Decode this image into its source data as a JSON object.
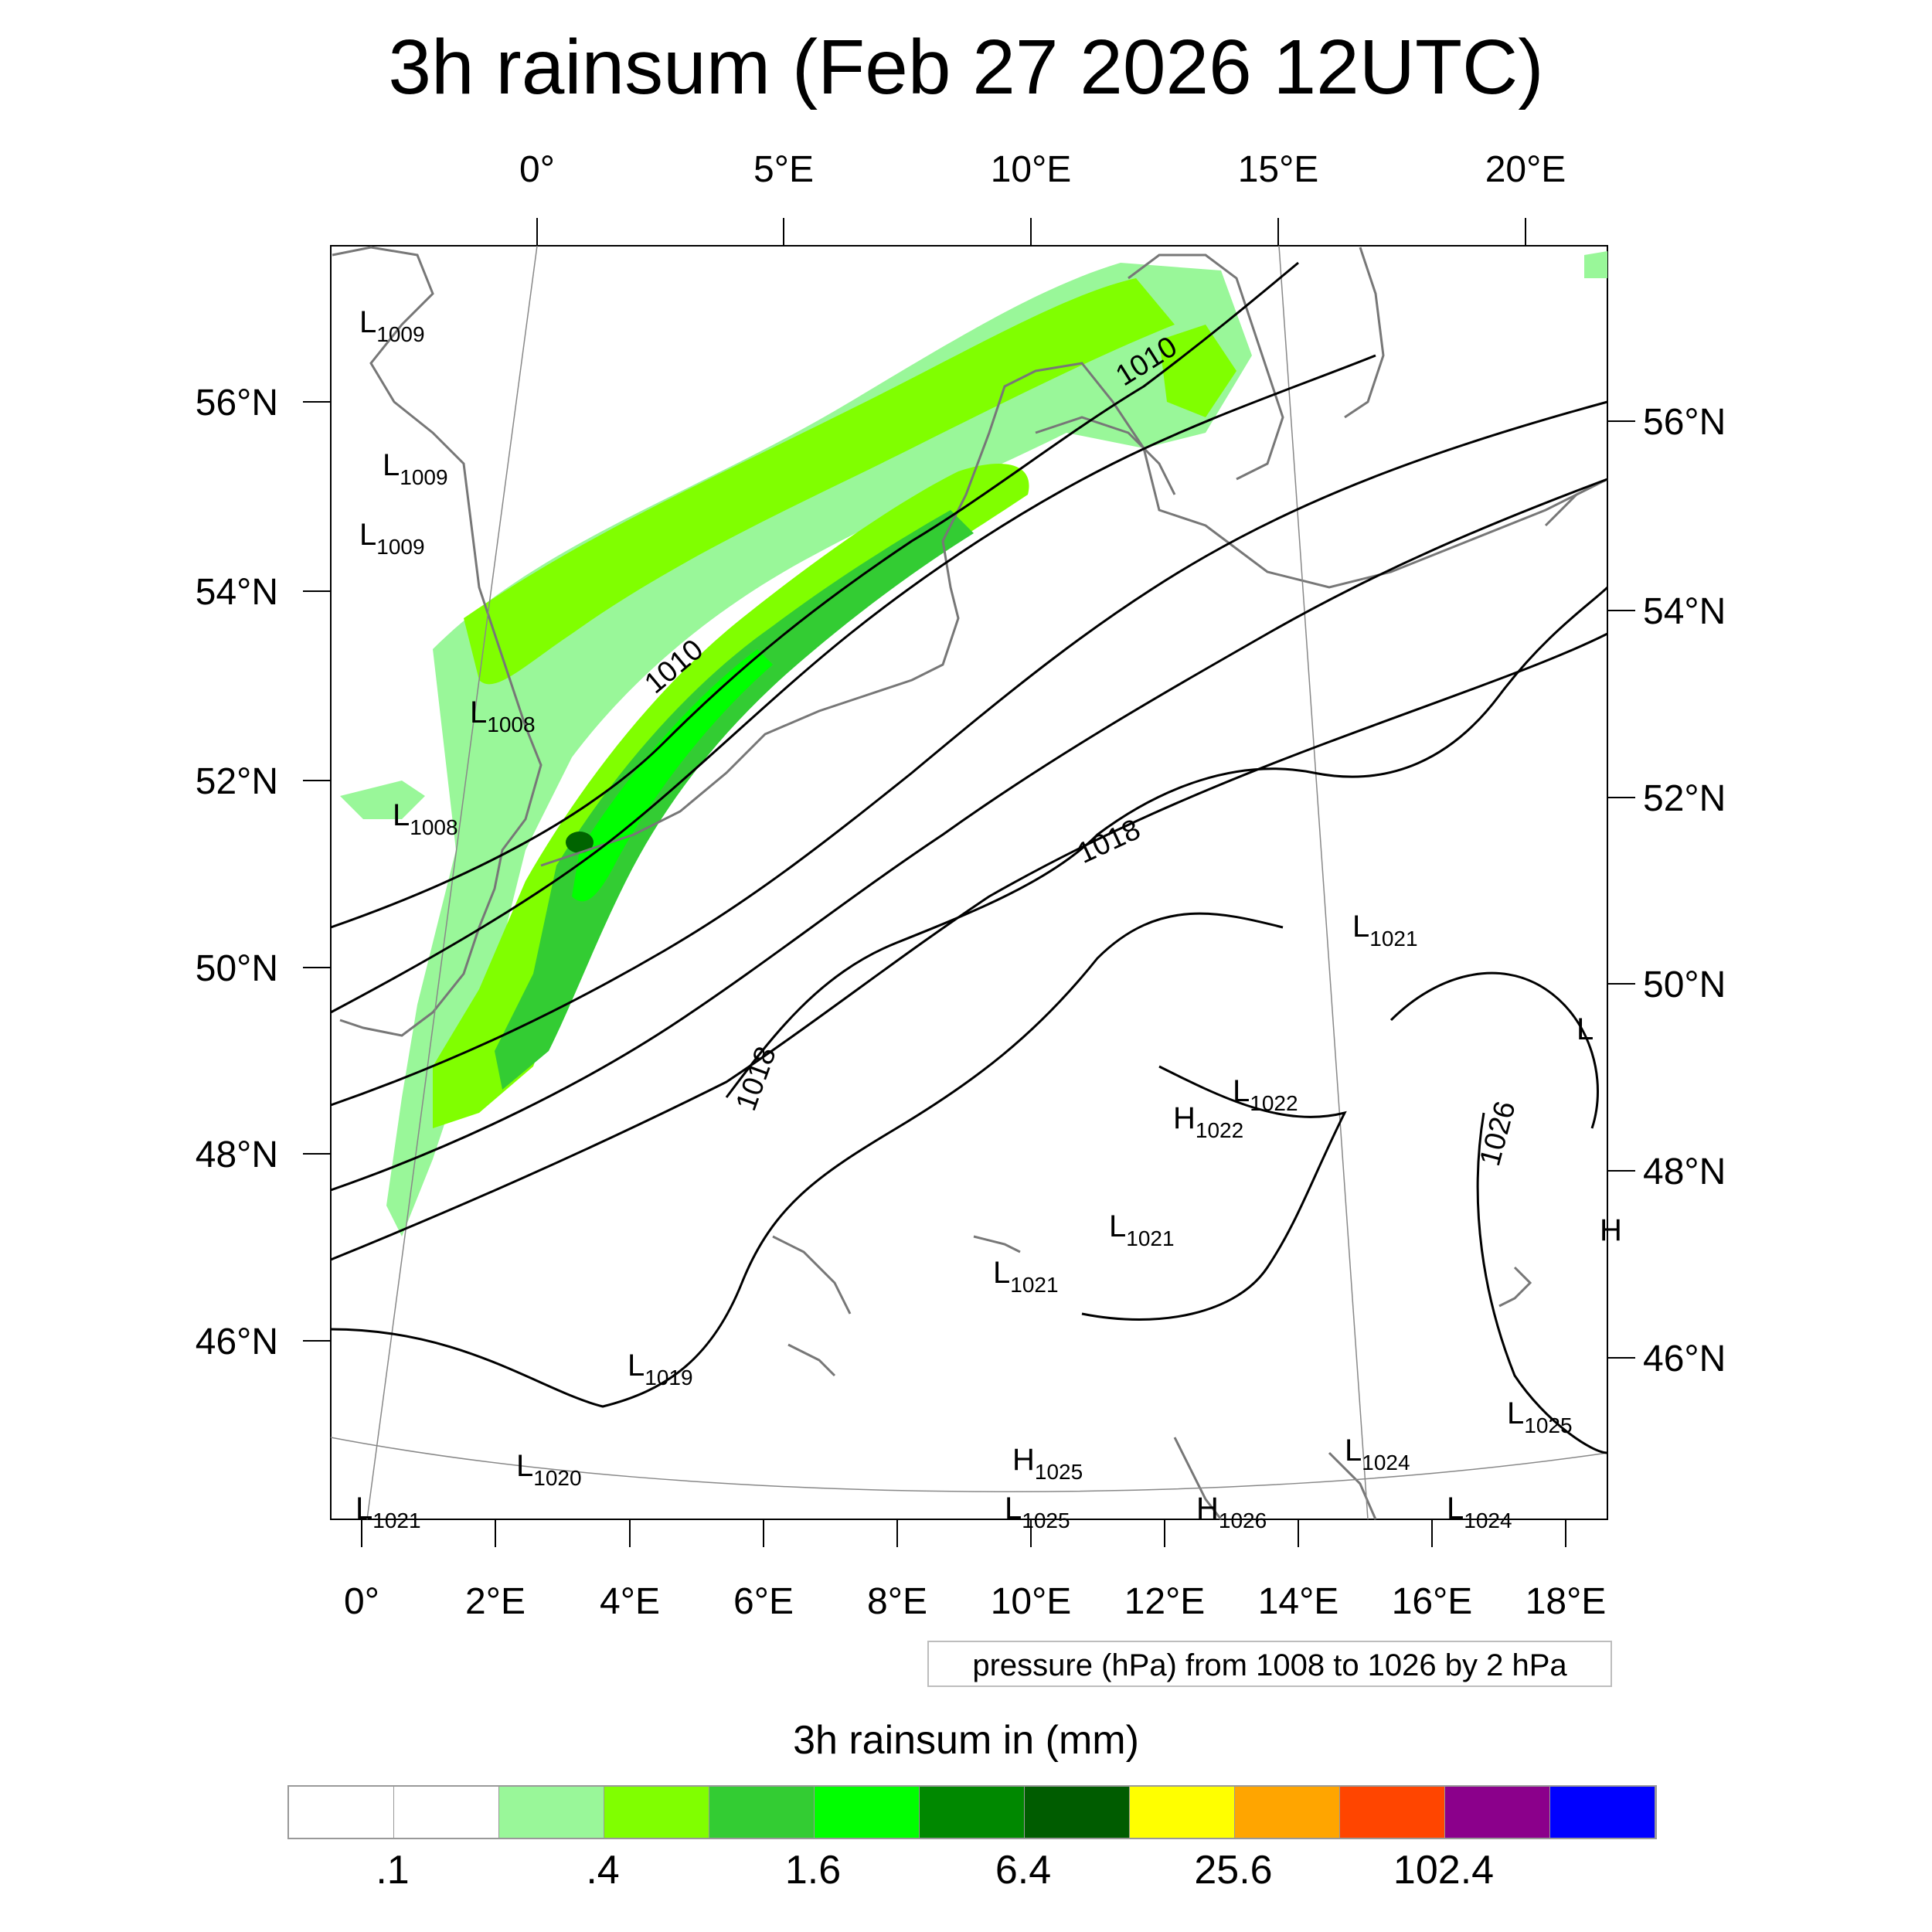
{
  "title": "3h rainsum (Feb 27 2026 12UTC)",
  "top_lon_labels": [
    "0°",
    "5°E",
    "10°E",
    "15°E",
    "20°E"
  ],
  "bottom_lon_labels": [
    "0°",
    "2°E",
    "4°E",
    "6°E",
    "8°E",
    "10°E",
    "12°E",
    "14°E",
    "16°E",
    "18°E"
  ],
  "left_lat_labels": [
    "56°N",
    "54°N",
    "52°N",
    "50°N",
    "48°N",
    "46°N"
  ],
  "right_lat_labels": [
    "56°N",
    "54°N",
    "52°N",
    "50°N",
    "48°N",
    "46°N"
  ],
  "contour_labels": [
    "1010",
    "1010",
    "1018",
    "1018",
    "1026"
  ],
  "pressure_centers": [
    {
      "letter": "L",
      "value": "1009"
    },
    {
      "letter": "L",
      "value": "1009"
    },
    {
      "letter": "L",
      "value": "1009"
    },
    {
      "letter": "L",
      "value": "1008"
    },
    {
      "letter": "L",
      "value": "1008"
    },
    {
      "letter": "L",
      "value": "1021"
    },
    {
      "letter": "L",
      "value": "1022"
    },
    {
      "letter": "H",
      "value": "1022"
    },
    {
      "letter": "L",
      "value": "1021"
    },
    {
      "letter": "L",
      "value": "1021"
    },
    {
      "letter": "L",
      "value": "1019"
    },
    {
      "letter": "L",
      "value": "1020"
    },
    {
      "letter": "H",
      "value": "1025"
    },
    {
      "letter": "L",
      "value": "1024"
    },
    {
      "letter": "L",
      "value": "1025"
    },
    {
      "letter": "L",
      "value": "1021"
    },
    {
      "letter": "L",
      "value": "1025"
    },
    {
      "letter": "H",
      "value": "1026"
    },
    {
      "letter": "L",
      "value": "1024"
    },
    {
      "letter": "L",
      "value": ""
    },
    {
      "letter": "H",
      "value": ""
    }
  ],
  "pressure_note": "pressure (hPa) from 1008 to 1026 by 2 hPa",
  "legend": {
    "title": "3h rainsum in (mm)",
    "colors": [
      "#ffffff",
      "#ffffff",
      "#99f799",
      "#80ff00",
      "#33cc33",
      "#00ff00",
      "#008800",
      "#005c00",
      "#ffff00",
      "#ffa500",
      "#ff4500",
      "#8b008b",
      "#0000ff"
    ],
    "labels": [
      ".1",
      ".4",
      "1.6",
      "6.4",
      "25.6",
      "102.4"
    ]
  },
  "styles": {
    "rain_light": "#99f799",
    "rain_mid": "#80ff00",
    "rain_strong": "#33cc33",
    "rain_heavy": "#00ff00",
    "rain_max": "#006400",
    "coast": "#777777",
    "contour": "#000000"
  }
}
